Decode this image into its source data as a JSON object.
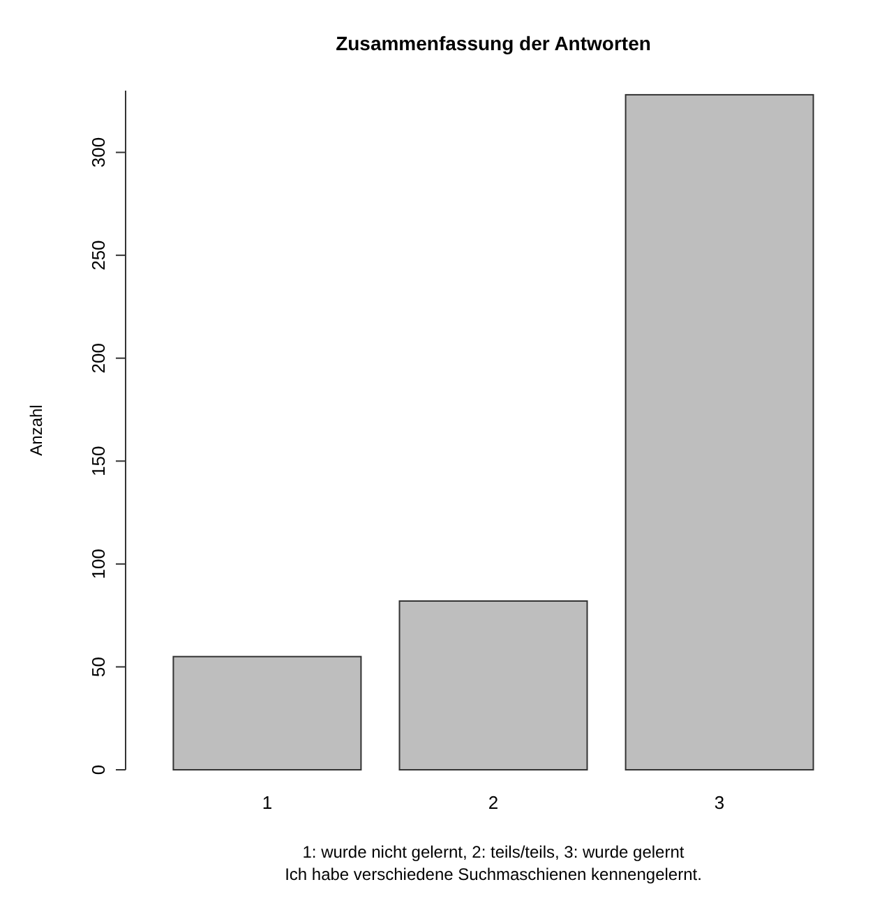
{
  "chart_data": {
    "type": "bar",
    "title": "Zusammenfassung der Antworten",
    "ylabel": "Anzahl",
    "categories": [
      "1",
      "2",
      "3"
    ],
    "values": [
      55,
      82,
      328
    ],
    "color": "#bebebe",
    "ylim": [
      0,
      330
    ],
    "yticks": [
      0,
      50,
      100,
      150,
      200,
      250,
      300
    ],
    "annotations": [
      "1: wurde nicht gelernt, 2: teils/teils, 3: wurde gelernt",
      "Ich habe verschiedene Suchmaschienen kennengelernt."
    ]
  }
}
